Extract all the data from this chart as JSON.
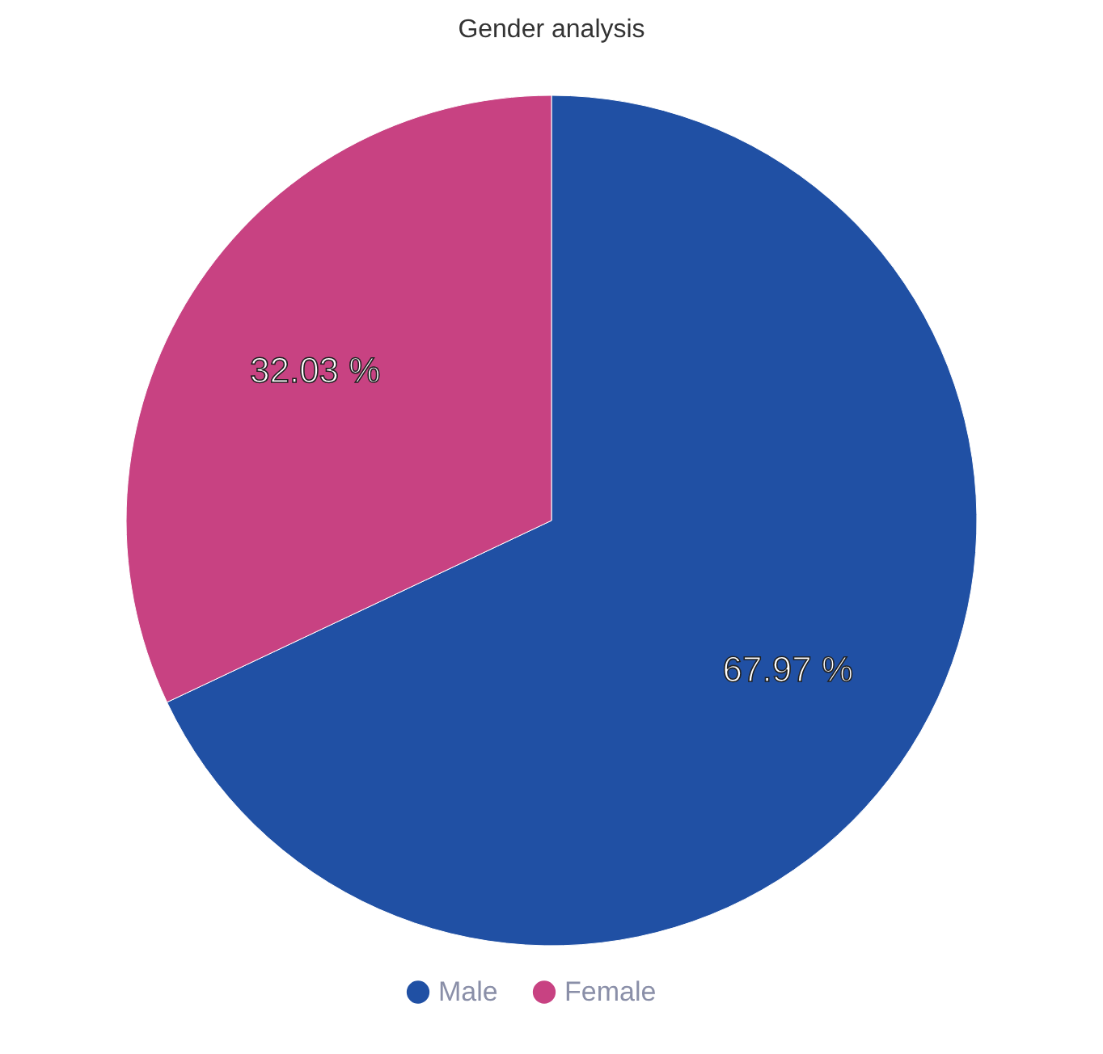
{
  "chart_data": {
    "type": "pie",
    "title": "Gender analysis",
    "categories": [
      "Male",
      "Female"
    ],
    "values": [
      67.97,
      32.03
    ],
    "colors": [
      "#2050a4",
      "#c84282"
    ],
    "value_labels": [
      "67.97 %",
      "32.03 %"
    ],
    "legend": "bottom"
  }
}
